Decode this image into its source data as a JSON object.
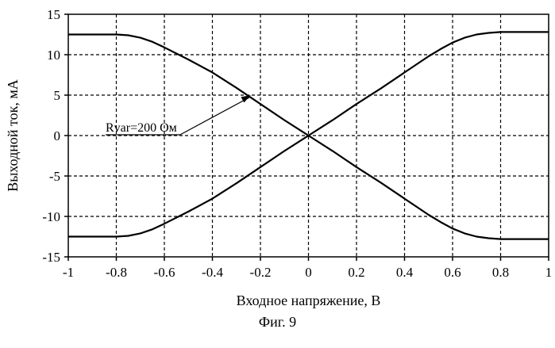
{
  "chart_data": {
    "type": "line",
    "title": "",
    "xlabel": "Входное напряжение, В",
    "ylabel": "Выходной ток, мА",
    "xlim": [
      -1,
      1
    ],
    "ylim": [
      -15,
      15
    ],
    "x_ticks": [
      -1,
      -0.8,
      -0.6,
      -0.4,
      -0.2,
      0,
      0.2,
      0.4,
      0.6,
      0.8,
      1
    ],
    "x_tick_labels": [
      "-1",
      "-0.8",
      "-0.6",
      "-0.4",
      "-0.2",
      "0",
      "0.2",
      "0.4",
      "0.6",
      "0.8",
      "1"
    ],
    "y_ticks": [
      -15,
      -10,
      -5,
      0,
      5,
      10,
      15
    ],
    "y_tick_labels": [
      "-15",
      "-10",
      "-5",
      "0",
      "5",
      "10",
      "15"
    ],
    "grid": true,
    "series": [
      {
        "x": [
          -1,
          -0.8,
          -0.75,
          -0.7,
          -0.65,
          -0.6,
          -0.5,
          -0.4,
          -0.3,
          -0.2,
          -0.1,
          0,
          0.1,
          0.2,
          0.3,
          0.4,
          0.5,
          0.55,
          0.6,
          0.65,
          0.7,
          0.75,
          0.8,
          1
        ],
        "values": [
          12.5,
          12.5,
          12.4,
          12.1,
          11.6,
          10.9,
          9.4,
          7.8,
          5.9,
          3.9,
          1.9,
          0,
          -1.9,
          -3.9,
          -5.8,
          -7.8,
          -9.8,
          -10.7,
          -11.5,
          -12.1,
          -12.5,
          -12.7,
          -12.8,
          -12.8
        ]
      },
      {
        "x": [
          -1,
          -0.8,
          -0.75,
          -0.7,
          -0.65,
          -0.6,
          -0.5,
          -0.4,
          -0.3,
          -0.2,
          -0.1,
          0,
          0.1,
          0.2,
          0.3,
          0.4,
          0.5,
          0.55,
          0.6,
          0.65,
          0.7,
          0.75,
          0.8,
          1
        ],
        "values": [
          -12.5,
          -12.5,
          -12.4,
          -12.1,
          -11.6,
          -10.9,
          -9.4,
          -7.8,
          -5.9,
          -3.9,
          -1.9,
          0,
          1.9,
          3.9,
          5.8,
          7.8,
          9.8,
          10.7,
          11.5,
          12.1,
          12.5,
          12.7,
          12.8,
          12.8
        ]
      }
    ],
    "annotations": [
      {
        "text": "Rvar=200 Ом",
        "x": -0.24,
        "y": 5.0
      }
    ],
    "caption": "Фиг. 9"
  }
}
